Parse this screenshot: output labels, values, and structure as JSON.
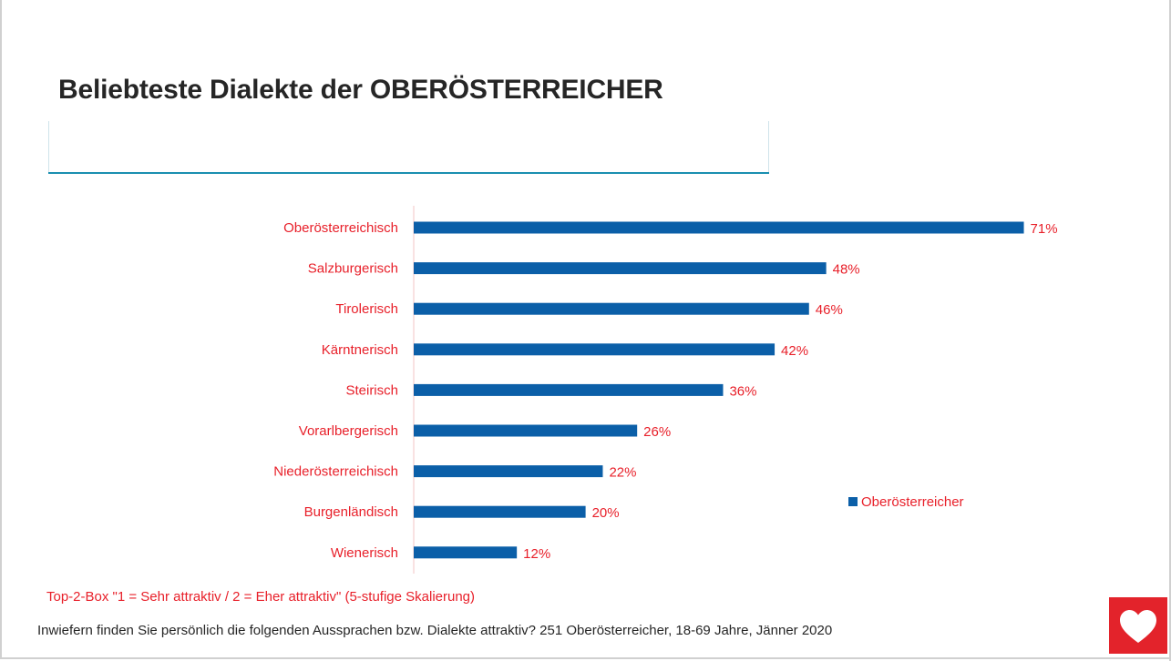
{
  "title": "Beliebteste Dialekte der OBERÖSTERREICHER",
  "chart_data": {
    "type": "bar",
    "orientation": "horizontal",
    "categories": [
      "Oberösterreichisch",
      "Salzburgerisch",
      "Tirolerisch",
      "Kärntnerisch",
      "Steirisch",
      "Vorarlbergerisch",
      "Niederösterreichisch",
      "Burgenländisch",
      "Wienerisch"
    ],
    "series": [
      {
        "name": "Oberösterreicher",
        "values": [
          71,
          48,
          46,
          42,
          36,
          26,
          22,
          20,
          12
        ],
        "color": "#0b5fa8"
      }
    ],
    "value_labels": [
      "71%",
      "48%",
      "46%",
      "42%",
      "36%",
      "26%",
      "22%",
      "20%",
      "12%"
    ],
    "unit": "%",
    "xlim": [
      0,
      100
    ],
    "legend_position": "right",
    "label_color": "#e8202a"
  },
  "footnote_scale": "Top-2-Box \"1 = Sehr attraktiv / 2 = Eher attraktiv\" (5-stufige Skalierung)",
  "footnote_question": "Inwiefern finden Sie persönlich die folgenden Aussprachen bzw. Dialekte attraktiv? 251 Oberösterreicher, 18-69 Jahre, Jänner 2020",
  "logo_icon": "heart-icon",
  "colors": {
    "accent": "#1a8fb0",
    "logo": "#e3232b",
    "bar": "#0b5fa8",
    "label": "#e8202a"
  }
}
